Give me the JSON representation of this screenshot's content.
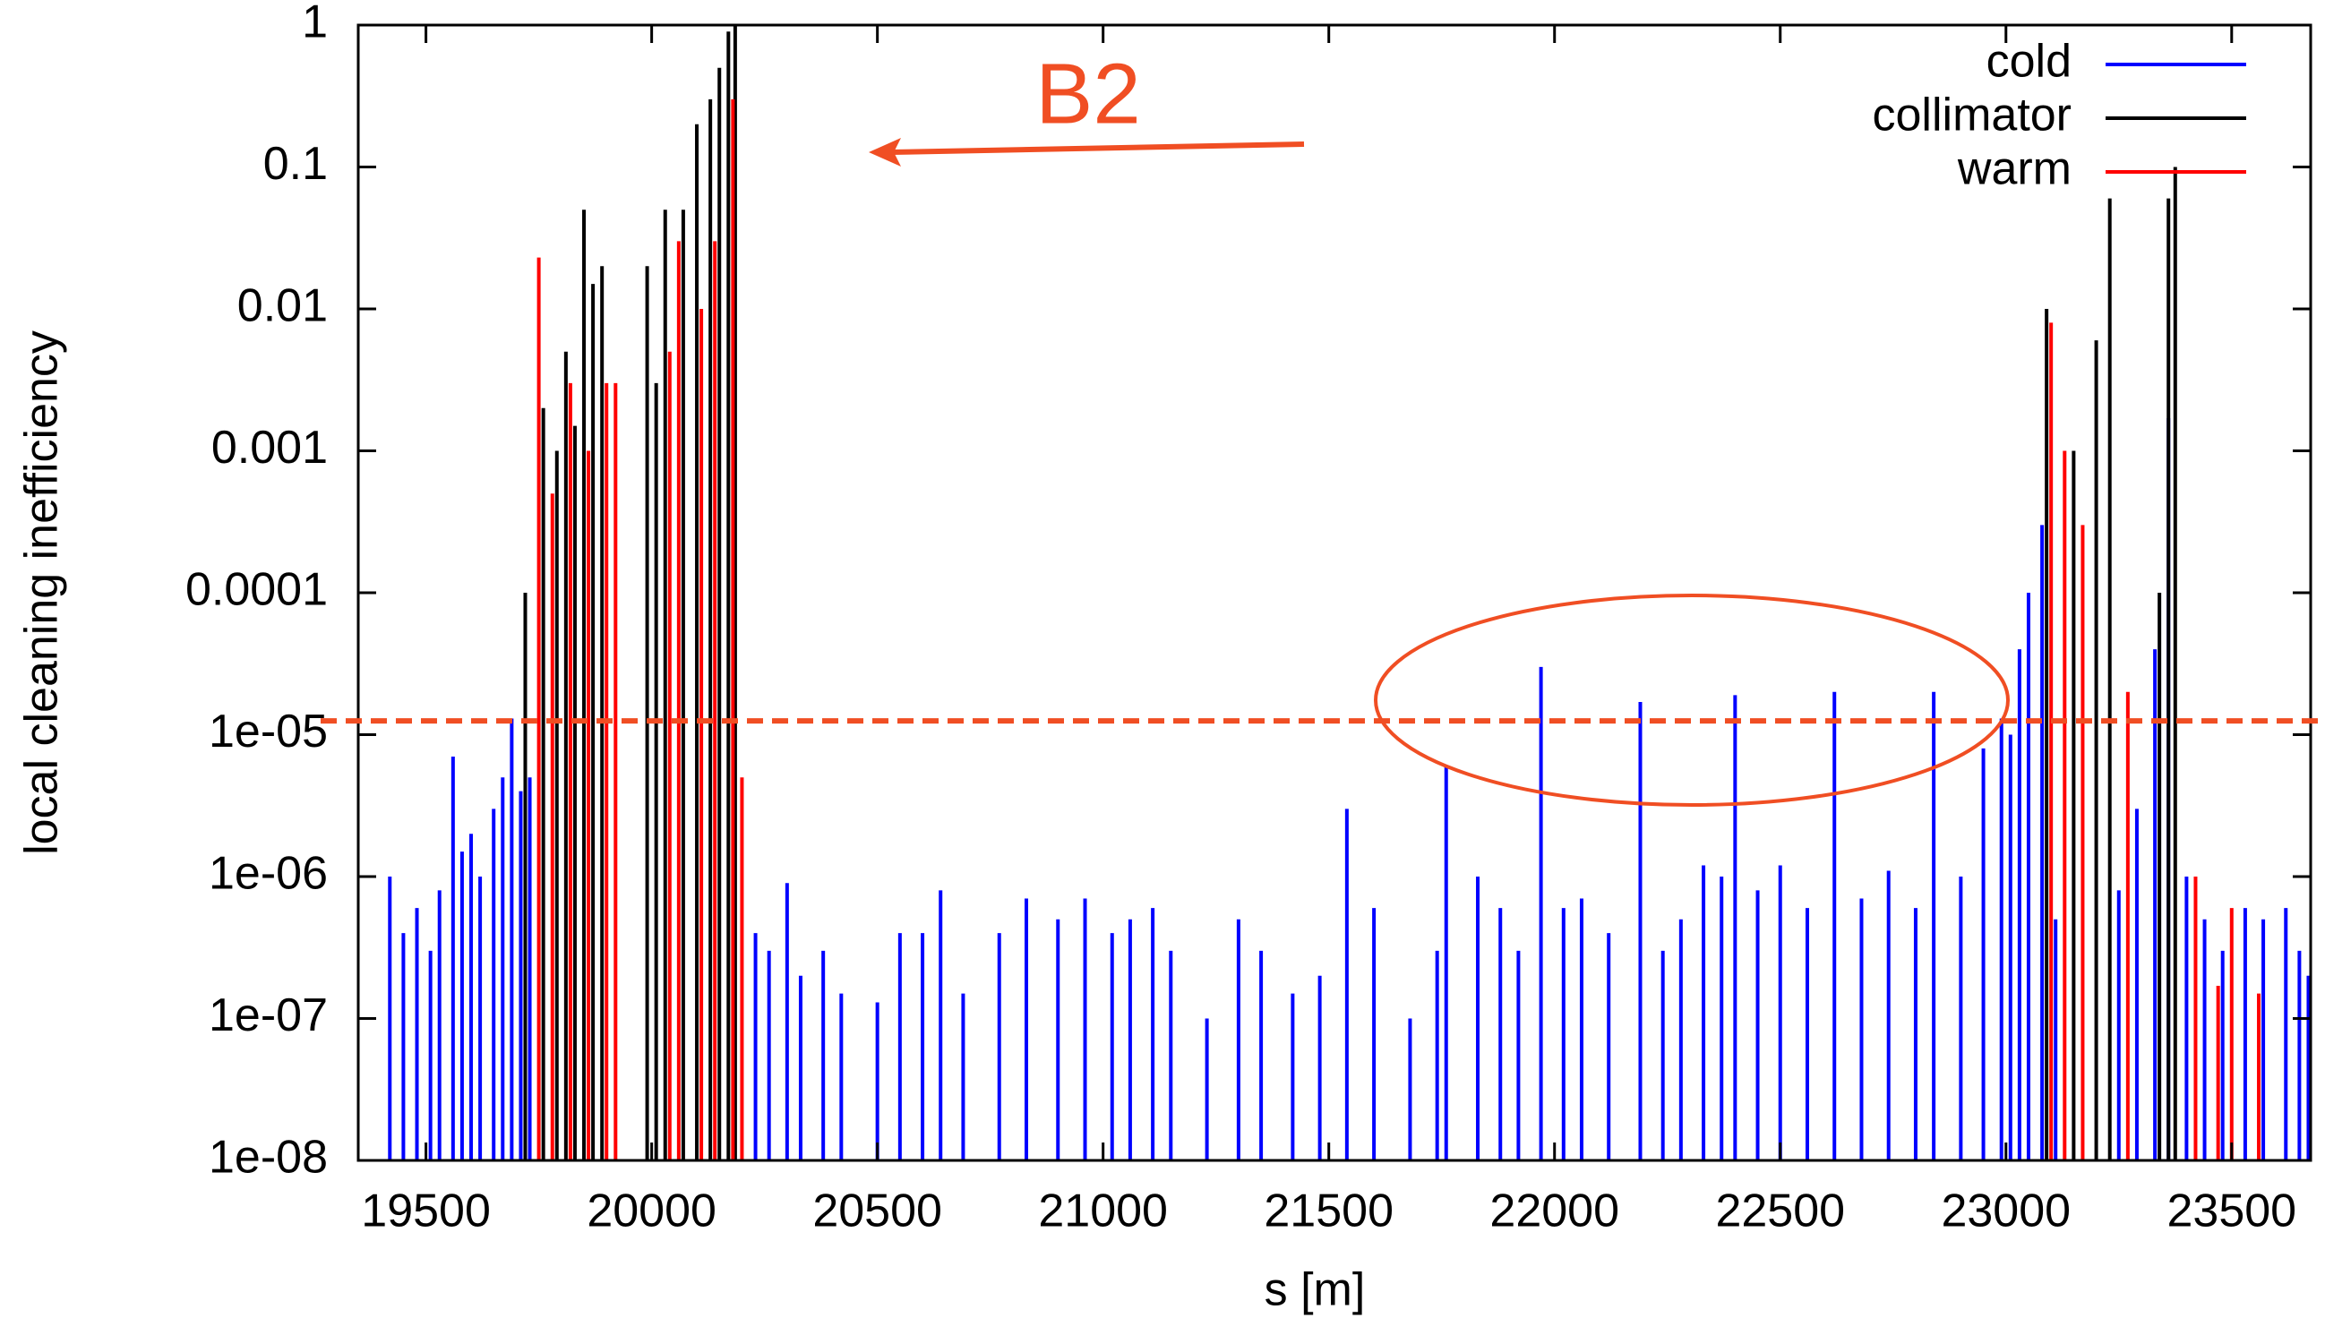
{
  "chart_data": {
    "type": "impulse",
    "x_label": "s [m]",
    "y_label": "local cleaning inefficiency",
    "annotation": "B2",
    "xlim": [
      19350,
      23675
    ],
    "xticks": [
      19500,
      20000,
      20500,
      21000,
      21500,
      22000,
      22500,
      23000,
      23500
    ],
    "ylim": [
      1e-08,
      1
    ],
    "yscale": "log",
    "yticks": [
      1,
      0.1,
      0.01,
      0.001,
      0.0001,
      {
        "value": 1e-05,
        "label": "1e-05"
      },
      {
        "value": 1e-06,
        "label": "1e-06"
      },
      {
        "value": 1e-07,
        "label": "1e-07"
      },
      {
        "value": 1e-08,
        "label": "1e-08"
      }
    ],
    "threshold": 1.25e-05,
    "legend": "top-right",
    "grid": false,
    "series": [
      {
        "name": "cold",
        "color": "#0000ff",
        "x": [
          19420,
          19450,
          19480,
          19510,
          19530,
          19560,
          19580,
          19600,
          19620,
          19650,
          19670,
          19690,
          19710,
          19730,
          20230,
          20260,
          20300,
          20330,
          20380,
          20420,
          20500,
          20550,
          20600,
          20640,
          20690,
          20770,
          20830,
          20900,
          20960,
          21020,
          21060,
          21110,
          21150,
          21230,
          21300,
          21350,
          21420,
          21480,
          21540,
          21600,
          21680,
          21740,
          21760,
          21830,
          21880,
          21920,
          21970,
          22020,
          22060,
          22120,
          22190,
          22240,
          22280,
          22330,
          22370,
          22400,
          22450,
          22500,
          22560,
          22620,
          22680,
          22740,
          22800,
          22840,
          22900,
          22950,
          22990,
          23010,
          23030,
          23050,
          23080,
          23110,
          23250,
          23290,
          23330,
          23360,
          23400,
          23440,
          23480,
          23530,
          23570,
          23620,
          23650,
          23670
        ],
        "values": [
          1e-06,
          4e-07,
          6e-07,
          3e-07,
          8e-07,
          7e-06,
          1.5e-06,
          2e-06,
          1e-06,
          3e-06,
          5e-06,
          1.3e-05,
          4e-06,
          5e-06,
          4e-07,
          3e-07,
          9e-07,
          2e-07,
          3e-07,
          1.5e-07,
          1.3e-07,
          4e-07,
          4e-07,
          8e-07,
          1.5e-07,
          4e-07,
          7e-07,
          5e-07,
          7e-07,
          4e-07,
          5e-07,
          6e-07,
          3e-07,
          1e-07,
          5e-07,
          3e-07,
          1.5e-07,
          2e-07,
          3e-06,
          6e-07,
          1e-07,
          3e-07,
          6e-06,
          1e-06,
          6e-07,
          3e-07,
          3e-05,
          6e-07,
          7e-07,
          4e-07,
          1.7e-05,
          3e-07,
          5e-07,
          1.2e-06,
          1e-06,
          1.9e-05,
          8e-07,
          1.2e-06,
          6e-07,
          2e-05,
          7e-07,
          1.1e-06,
          6e-07,
          2e-05,
          1e-06,
          8e-06,
          1.3e-05,
          1e-05,
          4e-05,
          0.0001,
          0.0003,
          5e-07,
          8e-07,
          3e-06,
          4e-05,
          0.0017,
          1e-06,
          5e-07,
          3e-07,
          6e-07,
          5e-07,
          6e-07,
          3e-07,
          2e-07
        ]
      },
      {
        "name": "collimator",
        "color": "#000000",
        "x": [
          19720,
          19760,
          19790,
          19810,
          19830,
          19850,
          19870,
          19890,
          19990,
          20010,
          20030,
          20070,
          20100,
          20130,
          20150,
          20170,
          20185,
          23090,
          23150,
          23200,
          23230,
          23340,
          23360,
          23375
        ],
        "values": [
          0.0001,
          0.002,
          0.001,
          0.005,
          0.0015,
          0.05,
          0.015,
          0.02,
          0.02,
          0.003,
          0.05,
          0.05,
          0.2,
          0.3,
          0.5,
          0.9,
          1,
          0.01,
          0.001,
          0.006,
          0.06,
          0.0001,
          0.06,
          0.1
        ]
      },
      {
        "name": "warm",
        "color": "#ff0000",
        "x": [
          19750,
          19780,
          19820,
          19860,
          19900,
          19920,
          20040,
          20060,
          20110,
          20140,
          20180,
          20200,
          23100,
          23130,
          23170,
          23270,
          23420,
          23470,
          23500,
          23560
        ],
        "values": [
          0.023,
          0.0005,
          0.003,
          0.001,
          0.003,
          0.003,
          0.005,
          0.03,
          0.01,
          0.03,
          0.3,
          5e-06,
          0.008,
          0.001,
          0.0003,
          2e-05,
          1e-06,
          1.7e-07,
          6e-07,
          1.5e-07
        ]
      }
    ]
  }
}
